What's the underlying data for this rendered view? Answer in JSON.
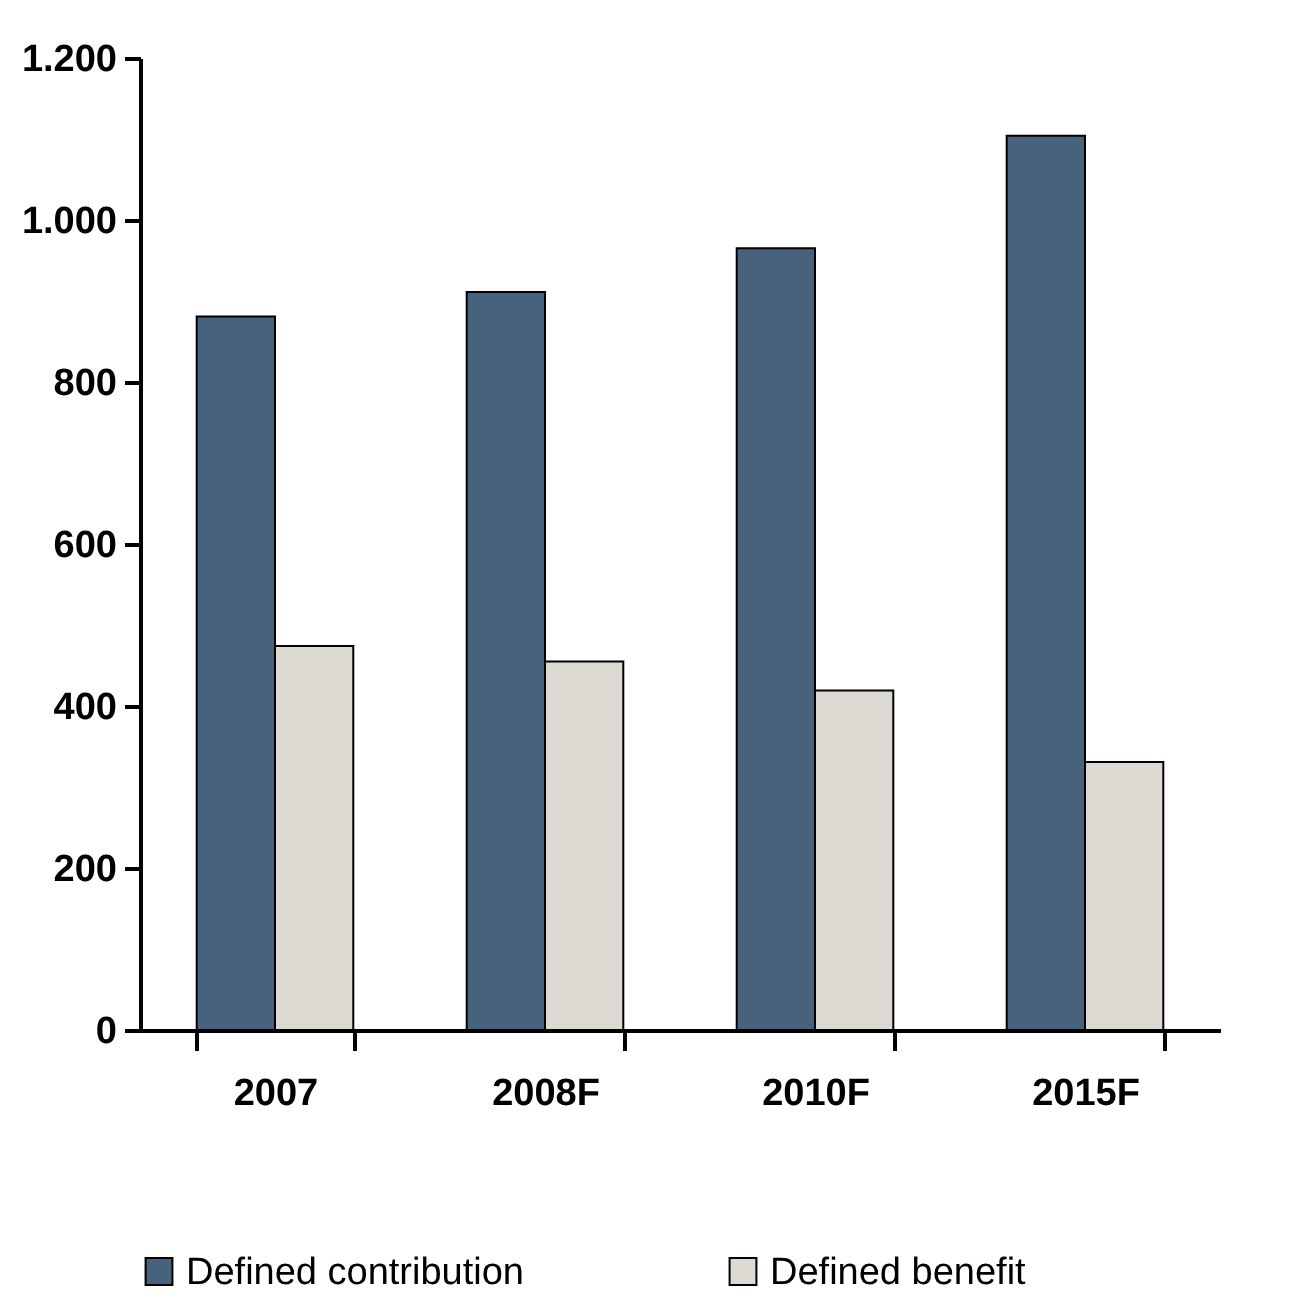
{
  "chart_data": {
    "type": "bar",
    "categories": [
      "2007",
      "2008F",
      "2010F",
      "2015F"
    ],
    "series": [
      {
        "name": "Defined contribution",
        "color": "#46627c",
        "values": [
          881,
          911,
          965,
          1104
        ]
      },
      {
        "name": "Defined benefit",
        "color": "#dcd9d2",
        "values": [
          474,
          455,
          419,
          331
        ]
      }
    ],
    "ylim": [
      0,
      1200
    ],
    "yticks": [
      0,
      200,
      400,
      600,
      800,
      {
        "value": 1000,
        "label": "1.000"
      },
      {
        "value": 1200,
        "label": "1.200"
      }
    ],
    "grid": false,
    "legend": "bottom"
  }
}
